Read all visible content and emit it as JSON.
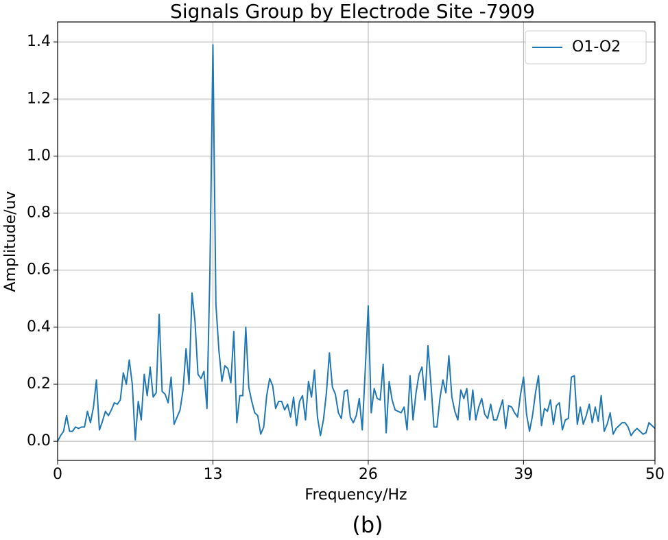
{
  "chart_data": {
    "type": "line",
    "title": "Signals Group by Electrode Site -7909",
    "xlabel": "Frequency/Hz",
    "ylabel": "Amplitude/uv",
    "caption": "(b)",
    "x": [
      0,
      0.25,
      0.5,
      0.75,
      1,
      1.25,
      1.5,
      1.75,
      2,
      2.25,
      2.5,
      2.75,
      3,
      3.25,
      3.5,
      3.75,
      4,
      4.25,
      4.5,
      4.75,
      5,
      5.25,
      5.5,
      5.75,
      6,
      6.25,
      6.5,
      6.75,
      7,
      7.25,
      7.5,
      7.75,
      8,
      8.25,
      8.5,
      8.75,
      9,
      9.25,
      9.5,
      9.75,
      10,
      10.25,
      10.5,
      10.75,
      11,
      11.25,
      11.5,
      11.75,
      12,
      12.25,
      12.5,
      12.75,
      13,
      13.25,
      13.5,
      13.75,
      14,
      14.25,
      14.5,
      14.75,
      15,
      15.25,
      15.5,
      15.75,
      16,
      16.25,
      16.5,
      16.75,
      17,
      17.25,
      17.5,
      17.75,
      18,
      18.25,
      18.5,
      18.75,
      19,
      19.25,
      19.5,
      19.75,
      20,
      20.25,
      20.5,
      20.75,
      21,
      21.25,
      21.5,
      21.75,
      22,
      22.25,
      22.5,
      22.75,
      23,
      23.25,
      23.5,
      23.75,
      24,
      24.25,
      24.5,
      24.75,
      25,
      25.25,
      25.5,
      25.75,
      26,
      26.25,
      26.5,
      26.75,
      27,
      27.25,
      27.5,
      27.75,
      28,
      28.25,
      28.5,
      28.75,
      29,
      29.25,
      29.5,
      29.75,
      30,
      30.25,
      30.5,
      30.75,
      31,
      31.25,
      31.5,
      31.75,
      32,
      32.25,
      32.5,
      32.75,
      33,
      33.25,
      33.5,
      33.75,
      34,
      34.25,
      34.5,
      34.75,
      35,
      35.25,
      35.5,
      35.75,
      36,
      36.25,
      36.5,
      36.75,
      37,
      37.25,
      37.5,
      37.75,
      38,
      38.25,
      38.5,
      38.75,
      39,
      39.25,
      39.5,
      39.75,
      40,
      40.25,
      40.5,
      40.75,
      41,
      41.25,
      41.5,
      41.75,
      42,
      42.25,
      42.5,
      42.75,
      43,
      43.25,
      43.5,
      43.75,
      44,
      44.25,
      44.5,
      44.75,
      45,
      45.25,
      45.5,
      45.75,
      46,
      46.25,
      46.5,
      46.75,
      47,
      47.25,
      47.5,
      47.75,
      48,
      48.25,
      48.5,
      48.75,
      49,
      49.25,
      49.5,
      49.75,
      50
    ],
    "series": [
      {
        "name": "O1-O2",
        "color": "#1f77b4",
        "values": [
          0,
          0.02,
          0.035,
          0.09,
          0.035,
          0.035,
          0.05,
          0.045,
          0.05,
          0.05,
          0.105,
          0.065,
          0.12,
          0.215,
          0.04,
          0.07,
          0.105,
          0.09,
          0.11,
          0.135,
          0.13,
          0.145,
          0.24,
          0.2,
          0.285,
          0.2,
          0.005,
          0.14,
          0.075,
          0.235,
          0.16,
          0.26,
          0.155,
          0.17,
          0.445,
          0.175,
          0.165,
          0.135,
          0.225,
          0.06,
          0.085,
          0.11,
          0.18,
          0.325,
          0.2,
          0.52,
          0.42,
          0.235,
          0.22,
          0.245,
          0.115,
          0.6,
          1.39,
          0.48,
          0.32,
          0.21,
          0.265,
          0.255,
          0.205,
          0.385,
          0.065,
          0.16,
          0.16,
          0.4,
          0.19,
          0.14,
          0.1,
          0.09,
          0.025,
          0.05,
          0.16,
          0.22,
          0.195,
          0.115,
          0.14,
          0.14,
          0.11,
          0.13,
          0.085,
          0.155,
          0.055,
          0.14,
          0.16,
          0.075,
          0.21,
          0.155,
          0.25,
          0.085,
          0.02,
          0.075,
          0.17,
          0.31,
          0.19,
          0.165,
          0.1,
          0.08,
          0.175,
          0.18,
          0.085,
          0.065,
          0.09,
          0.15,
          0.04,
          0.25,
          0.475,
          0.1,
          0.185,
          0.15,
          0.145,
          0.27,
          0.03,
          0.21,
          0.145,
          0.11,
          0.105,
          0.1,
          0.12,
          0.04,
          0.23,
          0.075,
          0.17,
          0.235,
          0.26,
          0.145,
          0.335,
          0.2,
          0.05,
          0.05,
          0.15,
          0.215,
          0.17,
          0.3,
          0.155,
          0.105,
          0.075,
          0.18,
          0.15,
          0.185,
          0.075,
          0.18,
          0.075,
          0.12,
          0.15,
          0.095,
          0.08,
          0.13,
          0.075,
          0.075,
          0.11,
          0.145,
          0.045,
          0.125,
          0.12,
          0.1,
          0.085,
          0.165,
          0.225,
          0.095,
          0.035,
          0.09,
          0.17,
          0.23,
          0.055,
          0.115,
          0.105,
          0.145,
          0.06,
          0.125,
          0.135,
          0.04,
          0.075,
          0.08,
          0.225,
          0.23,
          0.06,
          0.12,
          0.06,
          0.09,
          0.13,
          0.065,
          0.12,
          0.07,
          0.16,
          0.035,
          0.06,
          0.1,
          0.025,
          0.045,
          0.055,
          0.065,
          0.065,
          0.05,
          0.02,
          0.035,
          0.045,
          0.035,
          0.025,
          0.03,
          0.065,
          0.055,
          0.045
        ]
      }
    ],
    "xlim": [
      0,
      50
    ],
    "xticks": [
      0,
      13,
      26,
      39,
      50
    ],
    "ylim": [
      -0.067,
      1.47
    ],
    "yticks": [
      {
        "value": 0,
        "label": "0.0"
      },
      0.2,
      0.4,
      0.6,
      0.8,
      {
        "value": 1,
        "label": "1.0"
      },
      1.2,
      1.4
    ],
    "grid": true,
    "legend": "upper right"
  }
}
